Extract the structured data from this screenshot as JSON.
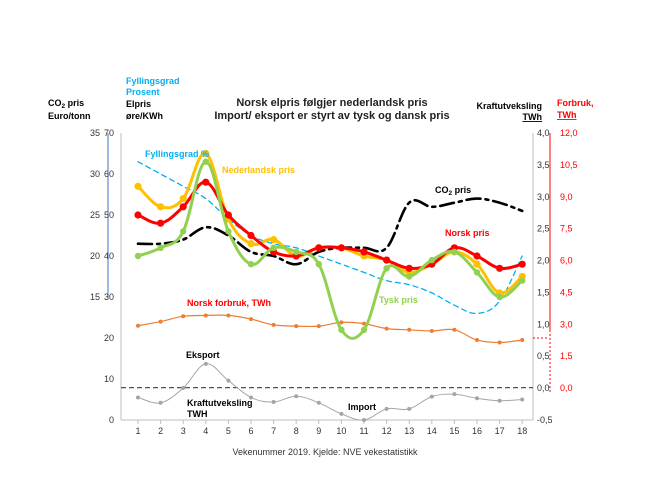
{
  "chart_data": {
    "type": "line",
    "title": [
      "Norsk elpris følgjer nederlandsk pris",
      "Import/ eksport er styrt av tysk og dansk pris"
    ],
    "xlabel": "Vekenummer 2019. Kjelde: NVE vekestatistikk",
    "categories": [
      1,
      2,
      3,
      4,
      5,
      6,
      7,
      8,
      9,
      10,
      11,
      12,
      13,
      14,
      15,
      16,
      17,
      18
    ],
    "axes": {
      "left": {
        "label_co2": [
          "CO",
          "2",
          " pris",
          "Euro/tonn"
        ],
        "label_fill": [
          "Fyllingsgrad",
          "Prosent"
        ],
        "label_price": [
          "Elpris",
          "øre/KWh"
        ],
        "range": [
          0,
          70
        ],
        "ticks": [
          "0",
          "10",
          "20",
          "30",
          "40",
          "50",
          "60",
          "70"
        ],
        "co2_ticks": [
          "15",
          "20",
          "25",
          "30",
          "35"
        ]
      },
      "right_inner": {
        "label": [
          "Kraftutveksling",
          "TWh"
        ],
        "range": [
          -0.5,
          4.0
        ],
        "ticks": [
          "-0,5",
          "0,0",
          "0,5",
          "1,0",
          "1,5",
          "2,0",
          "2,5",
          "3,0",
          "3,5",
          "4,0"
        ]
      },
      "right_outer": {
        "label": [
          "Forbruk,",
          "TWh"
        ],
        "range": [
          -1.5,
          12.0
        ],
        "ticks": [
          "0,0",
          "1,5",
          "3,0",
          "4,5",
          "6,0",
          "7,5",
          "9,0",
          "10,5",
          "12,0"
        ]
      }
    },
    "series": [
      {
        "name": "Nederlandsk pris",
        "color": "#FFC000",
        "axis": "left",
        "values": [
          57,
          52,
          54,
          65,
          49,
          43,
          44,
          40,
          42,
          42,
          40,
          39,
          36,
          38,
          41,
          38,
          31,
          35
        ]
      },
      {
        "name": "Norsk pris",
        "color": "#FF0000",
        "axis": "left",
        "values": [
          50,
          48,
          52,
          58,
          50,
          45,
          41,
          40,
          42,
          42,
          41,
          39,
          37,
          38,
          42,
          40,
          37,
          38
        ]
      },
      {
        "name": "Tysk pris",
        "color": "#92D050",
        "axis": "left",
        "values": [
          40,
          42,
          46,
          63,
          46,
          38,
          42,
          41,
          38,
          22,
          22,
          37,
          35,
          39,
          41,
          36,
          30,
          34
        ]
      },
      {
        "name": "Norsk forbruk, TWh",
        "color": "#ED7D31",
        "axis": "left",
        "values": [
          23,
          24,
          25.3,
          25.5,
          25.5,
          24.6,
          23.2,
          22.9,
          22.9,
          23.8,
          23.5,
          22.3,
          22,
          21.7,
          22,
          19.5,
          18.9,
          19.5
        ]
      },
      {
        "name": "Kraftutveksling TWH",
        "color": "#A5A5A5",
        "axis": "left",
        "values": [
          5.5,
          4.2,
          7.8,
          13.7,
          9.6,
          5.5,
          4.4,
          5.8,
          4.2,
          1.5,
          0,
          2.7,
          2.7,
          5.7,
          6.3,
          5.3,
          4.7,
          5
        ]
      },
      {
        "name": "Fyllingsgrad %",
        "color": "#00B0F0",
        "axis": "left",
        "style": "dashed",
        "values": [
          63,
          60,
          57,
          54,
          49,
          45,
          43,
          42,
          40,
          38,
          36,
          34,
          33,
          31,
          28,
          26,
          29,
          40
        ]
      },
      {
        "name": "CO₂ pris",
        "color": "#000000",
        "axis": "left",
        "style": "dashdot",
        "values": [
          43,
          43,
          44,
          47,
          45,
          41,
          40,
          38,
          41,
          42,
          42,
          42,
          53,
          52,
          53,
          54,
          53,
          51
        ]
      }
    ],
    "annotations": {
      "fyllingsgrad": "Fyllingsgrad %",
      "nederlandsk": "Nederlandsk pris",
      "co2": [
        "CO",
        "2",
        " pris"
      ],
      "norsk": "Norsk pris",
      "tysk": "Tysk pris",
      "forbruk": "Norsk forbruk, TWh",
      "eksport": "Eksport",
      "kraft": [
        "Kraftutveksling",
        "TWH"
      ],
      "import": "Import"
    }
  }
}
